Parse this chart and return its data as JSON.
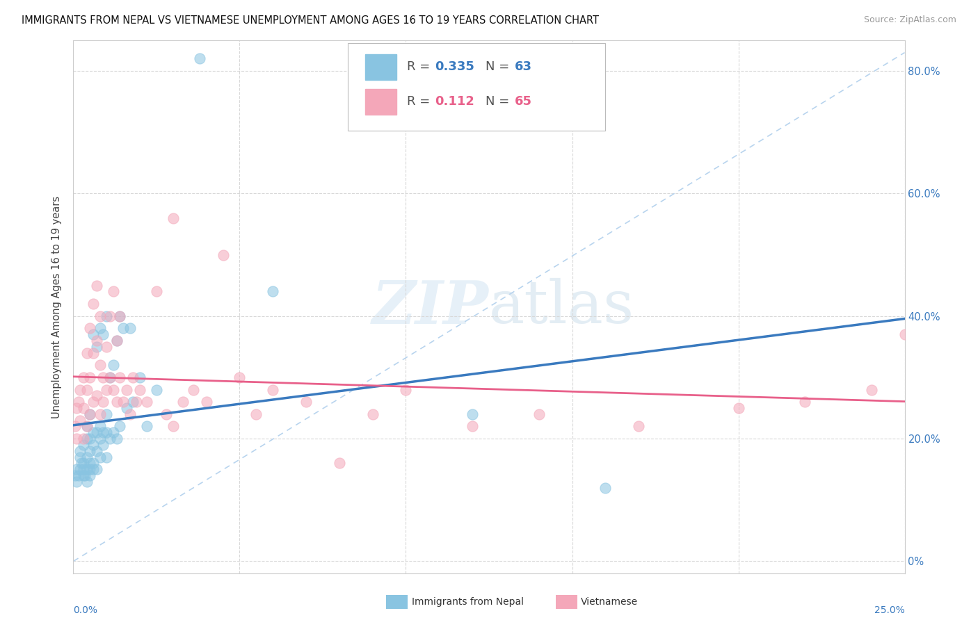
{
  "title": "IMMIGRANTS FROM NEPAL VS VIETNAMESE UNEMPLOYMENT AMONG AGES 16 TO 19 YEARS CORRELATION CHART",
  "source": "Source: ZipAtlas.com",
  "ylabel": "Unemployment Among Ages 16 to 19 years",
  "xlim": [
    0.0,
    0.25
  ],
  "ylim": [
    -0.02,
    0.85
  ],
  "y_tick_vals": [
    0.0,
    0.2,
    0.4,
    0.6,
    0.8
  ],
  "y_tick_labels": [
    "0%",
    "20.0%",
    "40.0%",
    "60.0%",
    "80.0%"
  ],
  "x_tick_vals": [
    0.0,
    0.05,
    0.1,
    0.15,
    0.2,
    0.25
  ],
  "legend_blue_R": "0.335",
  "legend_blue_N": "63",
  "legend_pink_R": "0.112",
  "legend_pink_N": "65",
  "blue_scatter_color": "#89c4e1",
  "pink_scatter_color": "#f4a7b9",
  "blue_line_color": "#3a7abf",
  "pink_line_color": "#e8608a",
  "dashed_line_color": "#b8d4ee",
  "watermark_color": "#ddeef8",
  "grid_color": "#d8d8d8",
  "blue_scatter_x": [
    0.0005,
    0.001,
    0.001,
    0.0015,
    0.002,
    0.002,
    0.002,
    0.0025,
    0.003,
    0.003,
    0.003,
    0.003,
    0.0035,
    0.004,
    0.004,
    0.004,
    0.004,
    0.004,
    0.005,
    0.005,
    0.005,
    0.005,
    0.005,
    0.005,
    0.006,
    0.006,
    0.006,
    0.006,
    0.006,
    0.007,
    0.007,
    0.007,
    0.007,
    0.008,
    0.008,
    0.008,
    0.008,
    0.009,
    0.009,
    0.009,
    0.01,
    0.01,
    0.01,
    0.01,
    0.011,
    0.011,
    0.012,
    0.012,
    0.013,
    0.013,
    0.014,
    0.014,
    0.015,
    0.016,
    0.017,
    0.018,
    0.02,
    0.022,
    0.025,
    0.038,
    0.06,
    0.12,
    0.16
  ],
  "blue_scatter_y": [
    0.14,
    0.13,
    0.15,
    0.14,
    0.15,
    0.17,
    0.18,
    0.16,
    0.14,
    0.15,
    0.16,
    0.19,
    0.14,
    0.13,
    0.15,
    0.17,
    0.2,
    0.22,
    0.14,
    0.15,
    0.16,
    0.18,
    0.2,
    0.24,
    0.15,
    0.16,
    0.19,
    0.21,
    0.37,
    0.15,
    0.18,
    0.21,
    0.35,
    0.17,
    0.2,
    0.22,
    0.38,
    0.19,
    0.21,
    0.37,
    0.17,
    0.21,
    0.24,
    0.4,
    0.2,
    0.3,
    0.21,
    0.32,
    0.2,
    0.36,
    0.22,
    0.4,
    0.38,
    0.25,
    0.38,
    0.26,
    0.3,
    0.22,
    0.28,
    0.82,
    0.44,
    0.24,
    0.12
  ],
  "pink_scatter_x": [
    0.0005,
    0.001,
    0.001,
    0.0015,
    0.002,
    0.002,
    0.003,
    0.003,
    0.003,
    0.004,
    0.004,
    0.004,
    0.005,
    0.005,
    0.005,
    0.006,
    0.006,
    0.006,
    0.007,
    0.007,
    0.007,
    0.008,
    0.008,
    0.008,
    0.009,
    0.009,
    0.01,
    0.01,
    0.011,
    0.011,
    0.012,
    0.012,
    0.013,
    0.013,
    0.014,
    0.014,
    0.015,
    0.016,
    0.017,
    0.018,
    0.019,
    0.02,
    0.022,
    0.025,
    0.028,
    0.03,
    0.033,
    0.036,
    0.04,
    0.05,
    0.055,
    0.06,
    0.07,
    0.08,
    0.09,
    0.1,
    0.12,
    0.14,
    0.17,
    0.2,
    0.22,
    0.24,
    0.25,
    0.03,
    0.045
  ],
  "pink_scatter_y": [
    0.22,
    0.2,
    0.25,
    0.26,
    0.23,
    0.28,
    0.2,
    0.25,
    0.3,
    0.22,
    0.28,
    0.34,
    0.24,
    0.3,
    0.38,
    0.26,
    0.34,
    0.42,
    0.27,
    0.36,
    0.45,
    0.24,
    0.32,
    0.4,
    0.26,
    0.3,
    0.28,
    0.35,
    0.3,
    0.4,
    0.28,
    0.44,
    0.26,
    0.36,
    0.3,
    0.4,
    0.26,
    0.28,
    0.24,
    0.3,
    0.26,
    0.28,
    0.26,
    0.44,
    0.24,
    0.22,
    0.26,
    0.28,
    0.26,
    0.3,
    0.24,
    0.28,
    0.26,
    0.16,
    0.24,
    0.28,
    0.22,
    0.24,
    0.22,
    0.25,
    0.26,
    0.28,
    0.37,
    0.56,
    0.5
  ]
}
